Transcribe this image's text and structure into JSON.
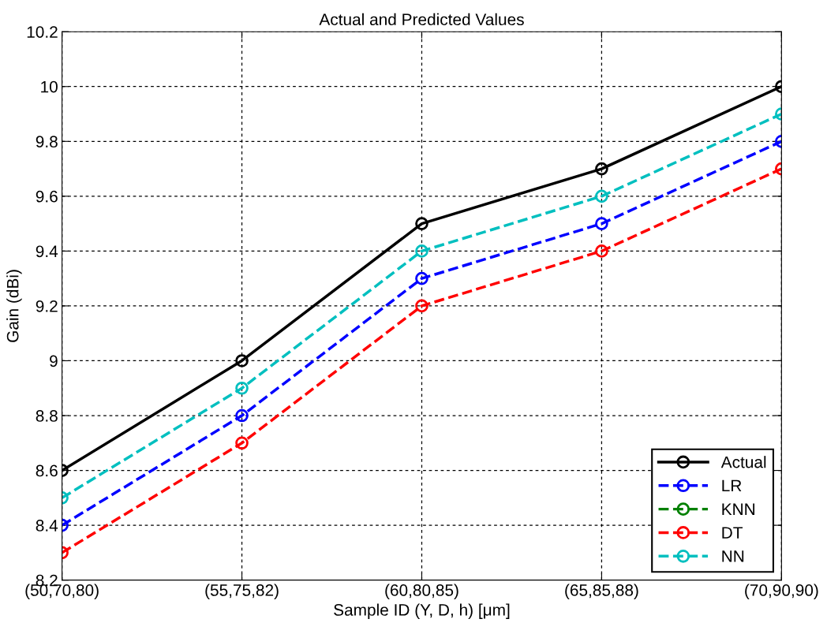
{
  "chart_data": {
    "type": "line",
    "title": "Actual and Predicted Values",
    "xlabel": "Sample ID (Y, D, h) [μm]",
    "ylabel": "Gain (dBi)",
    "categories": [
      "(50,70,80)",
      "(55,75,82)",
      "(60,80,85)",
      "(65,85,88)",
      "(70,90,90)"
    ],
    "series": [
      {
        "name": "Actual",
        "color": "#000000",
        "line_style": "solid",
        "values": [
          8.6,
          9,
          9.5,
          9.7,
          10
        ]
      },
      {
        "name": "LR",
        "color": "#0000ff",
        "line_style": "dashed",
        "values": [
          8.4,
          8.8,
          9.3,
          9.5,
          9.8
        ]
      },
      {
        "name": "KNN",
        "color": "#008000",
        "line_style": "dashed",
        "values": [
          null,
          null,
          null,
          null,
          null
        ]
      },
      {
        "name": "DT",
        "color": "#ff0000",
        "line_style": "dashed",
        "values": [
          8.3,
          8.7,
          9.2,
          9.4,
          9.7
        ]
      },
      {
        "name": "NN",
        "color": "#00bfbf",
        "line_style": "dashed",
        "values": [
          8.5,
          8.9,
          9.4,
          9.6,
          9.9
        ]
      }
    ],
    "ylim": [
      8.2,
      10.2
    ],
    "yticks": [
      8.2,
      8.4,
      8.6,
      8.8,
      9,
      9.2,
      9.4,
      9.6,
      9.8,
      10,
      10.2
    ],
    "grid": true,
    "legend": "bottom right",
    "marker": "circle"
  }
}
